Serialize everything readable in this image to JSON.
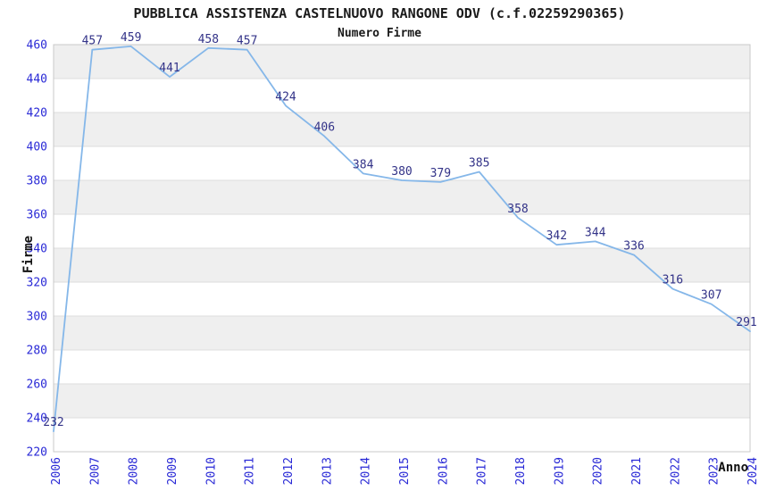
{
  "page": {
    "background": "#ffffff"
  },
  "chart_data": {
    "type": "line",
    "title": "PUBBLICA ASSISTENZA CASTELNUOVO RANGONE ODV (c.f.02259290365)",
    "subtitle": "Numero Firme",
    "xlabel": "Anno",
    "ylabel": "Firme",
    "categories": [
      2006,
      2007,
      2008,
      2009,
      2010,
      2011,
      2012,
      2013,
      2014,
      2015,
      2016,
      2017,
      2018,
      2019,
      2020,
      2021,
      2022,
      2023,
      2024
    ],
    "series": [
      {
        "name": "Numero Firme",
        "values": [
          232,
          457,
          459,
          441,
          458,
          457,
          424,
          406,
          384,
          380,
          379,
          385,
          358,
          342,
          344,
          336,
          316,
          307,
          291
        ]
      }
    ],
    "data_labels": true,
    "ylim": [
      220,
      460
    ],
    "ytick_step": 20,
    "yticks": [
      220,
      240,
      260,
      280,
      300,
      320,
      340,
      360,
      380,
      400,
      420,
      440,
      460
    ],
    "grid": true,
    "legend_position": "none",
    "colors": {
      "line": "#85b7e9",
      "data_label": "#333388",
      "tick_label": "#2929d6",
      "title": "#1a1a1a",
      "subtitle": "#1a1a1a",
      "axis_title": "#111111",
      "band": "#efefef",
      "grid": "#dcdcdc",
      "border": "#c9c9c9",
      "background": "#ffffff"
    }
  }
}
